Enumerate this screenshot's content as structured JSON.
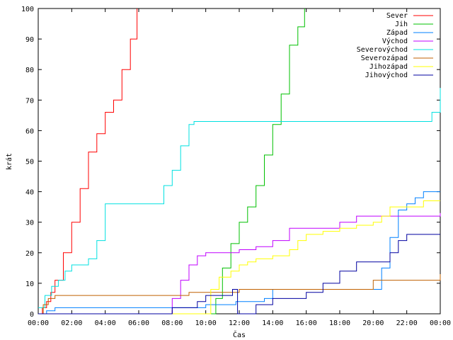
{
  "chart_data": {
    "type": "line",
    "xlabel": "Čas",
    "ylabel": "krát",
    "xlim": [
      0,
      24
    ],
    "ylim": [
      0,
      100
    ],
    "x_ticks": [
      {
        "value": 0,
        "label": "00:00"
      },
      {
        "value": 2,
        "label": "02:00"
      },
      {
        "value": 4,
        "label": "04:00"
      },
      {
        "value": 6,
        "label": "06:00"
      },
      {
        "value": 8,
        "label": "08:00"
      },
      {
        "value": 10,
        "label": "10:00"
      },
      {
        "value": 12,
        "label": "12:00"
      },
      {
        "value": 14,
        "label": "14:00"
      },
      {
        "value": 16,
        "label": "16:00"
      },
      {
        "value": 18,
        "label": "18:00"
      },
      {
        "value": 20,
        "label": "20:00"
      },
      {
        "value": 22,
        "label": "22:00"
      },
      {
        "value": 24,
        "label": "00:00"
      }
    ],
    "y_ticks": [
      0,
      10,
      20,
      30,
      40,
      50,
      60,
      70,
      80,
      90,
      100
    ],
    "legend_position": "top-right",
    "grid": false,
    "series": [
      {
        "name": "Sever",
        "color": "#ff0000",
        "x": [
          0,
          0.25,
          0.5,
          0.75,
          1,
          1.5,
          2,
          2.5,
          3,
          3.5,
          4,
          4.5,
          5,
          5.5,
          5.9
        ],
        "y": [
          0,
          2,
          4,
          7,
          11,
          20,
          30,
          41,
          53,
          59,
          66,
          70,
          80,
          90,
          100
        ]
      },
      {
        "name": "Jih",
        "color": "#00c000",
        "x": [
          0,
          10.4,
          10.6,
          11,
          11.5,
          12,
          12.5,
          13,
          13.5,
          14,
          14.5,
          15,
          15.5,
          15.9
        ],
        "y": [
          0,
          0,
          5,
          15,
          23,
          30,
          35,
          42,
          52,
          62,
          72,
          88,
          94,
          100
        ]
      },
      {
        "name": "Západ",
        "color": "#0080ff",
        "x": [
          0,
          0.5,
          1,
          5,
          6,
          9.5,
          10,
          11.8,
          12,
          13,
          13.5,
          14,
          17,
          19,
          20,
          20.5,
          21,
          21.5,
          22,
          22.5,
          23,
          24
        ],
        "y": [
          0,
          1,
          2,
          2,
          2,
          2,
          3,
          4,
          4,
          4,
          5,
          8,
          8,
          8,
          8,
          15,
          25,
          34,
          36,
          38,
          40,
          40
        ]
      },
      {
        "name": "Východ",
        "color": "#c000ff",
        "x": [
          0,
          7.7,
          8,
          8.5,
          9,
          9.5,
          10,
          11,
          12,
          13,
          14,
          15,
          16,
          17,
          18,
          19,
          20,
          21,
          22,
          23,
          24
        ],
        "y": [
          0,
          0,
          5,
          11,
          16,
          19,
          20,
          20,
          21,
          22,
          24,
          28,
          28,
          28,
          30,
          32,
          32,
          32,
          32,
          32,
          33
        ]
      },
      {
        "name": "Severovýchod",
        "color": "#00e0e0",
        "x": [
          0,
          0.4,
          0.8,
          1.2,
          1.6,
          2,
          3,
          3.5,
          4,
          5,
          6,
          7,
          7.5,
          8,
          8.5,
          9,
          9.3,
          10,
          14,
          18,
          22,
          23,
          23.5,
          24
        ],
        "y": [
          2,
          6,
          9,
          11,
          14,
          16,
          18,
          24,
          36,
          36,
          36,
          36,
          42,
          47,
          55,
          62,
          63,
          63,
          63,
          63,
          63,
          63,
          66,
          74
        ]
      },
      {
        "name": "Severozápad",
        "color": "#c06000",
        "x": [
          0,
          0.3,
          0.6,
          1,
          2,
          4,
          6,
          8,
          9,
          10,
          12,
          14,
          16,
          18,
          19.5,
          20,
          22,
          23.5,
          24
        ],
        "y": [
          0,
          3,
          5,
          6,
          6,
          6,
          6,
          6,
          7,
          7,
          8,
          8,
          8,
          8,
          8,
          11,
          11,
          11,
          13
        ]
      },
      {
        "name": "Jihozápad",
        "color": "#ffff00",
        "x": [
          0,
          9.8,
          10.3,
          10.8,
          11.5,
          12,
          12.5,
          13,
          14,
          15,
          15.5,
          16,
          17,
          18,
          19,
          20,
          20.5,
          21,
          22,
          23,
          24
        ],
        "y": [
          0,
          0,
          8,
          12,
          14,
          16,
          17,
          18,
          19,
          21,
          24,
          26,
          27,
          28,
          29,
          30,
          32,
          35,
          35,
          37,
          37
        ]
      },
      {
        "name": "Jihovýchod",
        "color": "#0000a0",
        "x": [
          0,
          6.5,
          8,
          9.5,
          10,
          11,
          11.6,
          11.9,
          12.1,
          12.3,
          12.7,
          13,
          14,
          16,
          17,
          18,
          19,
          20,
          21,
          21.5,
          22,
          23,
          24
        ],
        "y": [
          0,
          0,
          2,
          4,
          6,
          6,
          8,
          0,
          0,
          0,
          0,
          3,
          5,
          7,
          10,
          14,
          17,
          17,
          20,
          24,
          26,
          26,
          26
        ]
      }
    ]
  }
}
